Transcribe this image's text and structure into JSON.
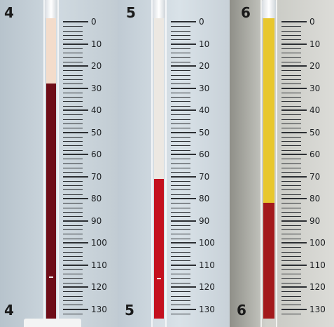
{
  "scale": {
    "labels": [
      "0",
      "10",
      "20",
      "30",
      "40",
      "50",
      "60",
      "70",
      "80",
      "90",
      "100",
      "110",
      "120",
      "130"
    ]
  },
  "tubes": [
    {
      "top_label": "4",
      "bottom_label": "4",
      "plasma_level": 28,
      "plasma_color": "#f3dccb",
      "cell_color": "#6e0d18"
    },
    {
      "top_label": "5",
      "bottom_label": "5",
      "plasma_level": 71,
      "plasma_color": "#ece8e2",
      "cell_color": "#c4101e"
    },
    {
      "top_label": "6",
      "bottom_label": "6",
      "plasma_level": 82,
      "plasma_color": "#e8c72e",
      "cell_color": "#a31a1c"
    }
  ]
}
